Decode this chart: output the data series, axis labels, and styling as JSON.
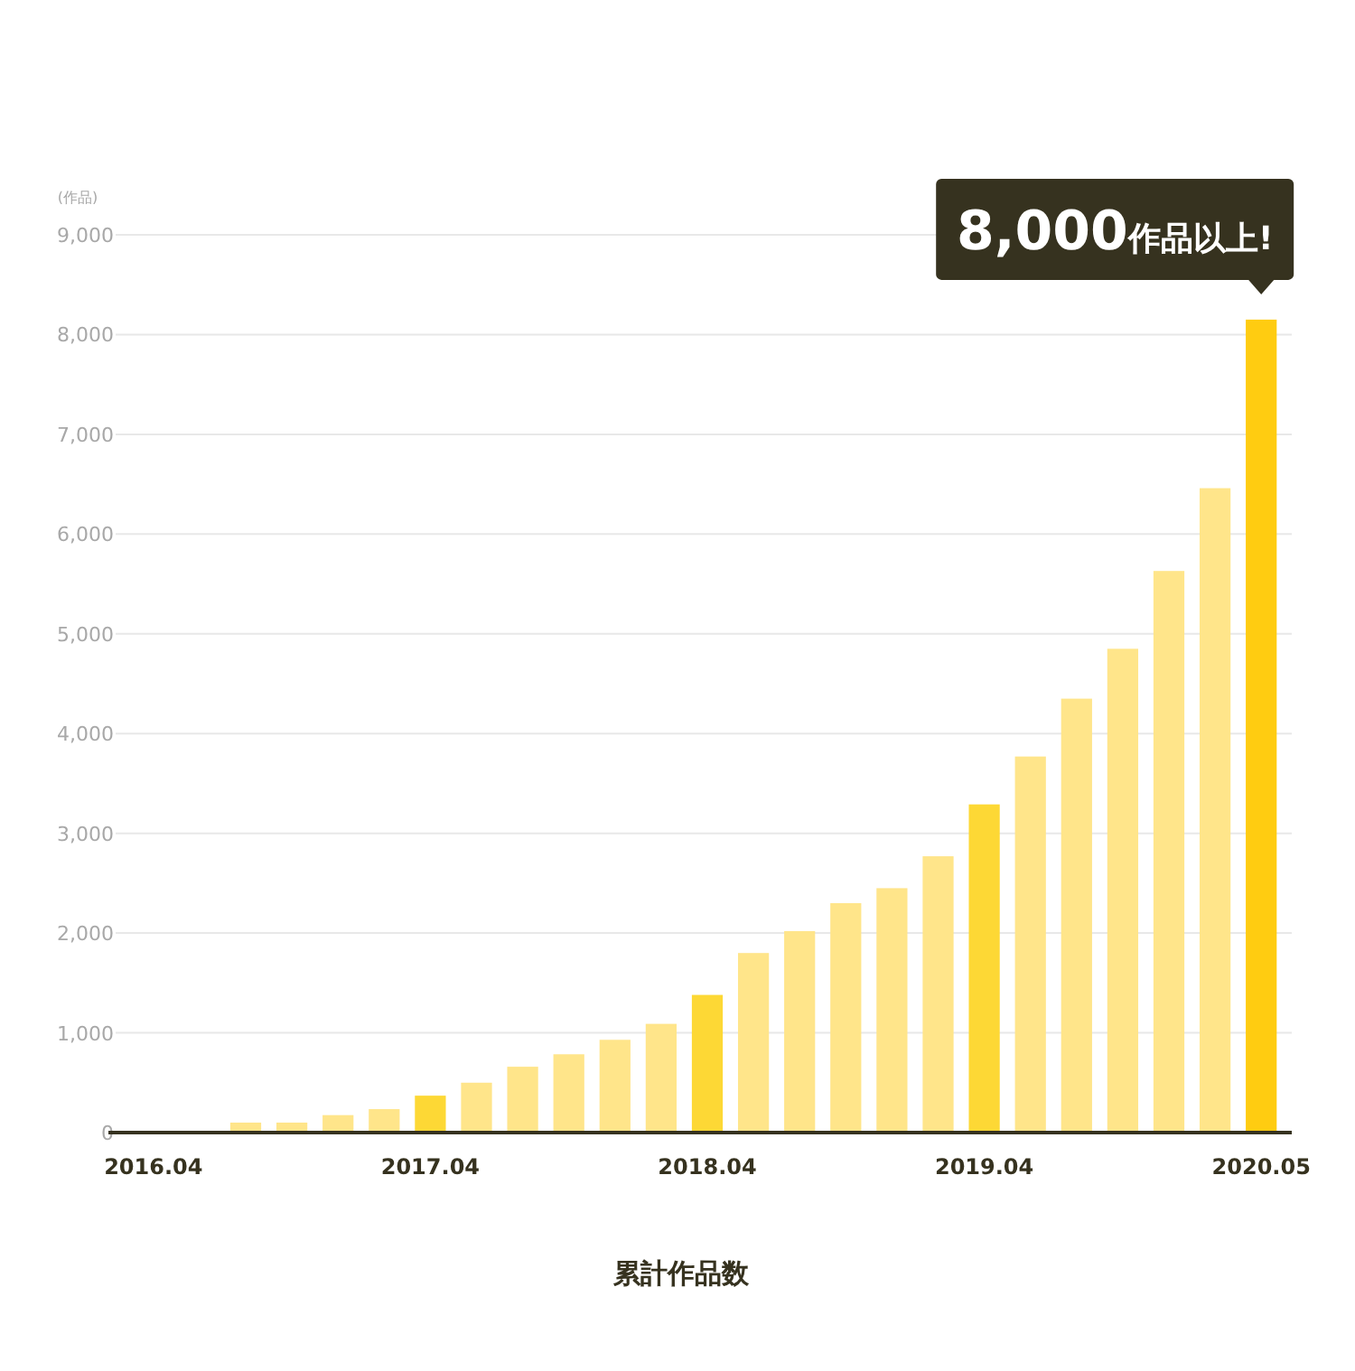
{
  "chart_data": {
    "type": "bar",
    "xlabel": "累計作品数",
    "ylabel": "(作品)",
    "categories": [
      "2016.04",
      null,
      null,
      null,
      null,
      null,
      "2017.04",
      null,
      null,
      null,
      null,
      null,
      "2018.04",
      null,
      null,
      null,
      null,
      null,
      "2019.04",
      null,
      null,
      null,
      null,
      null,
      "2020.05"
    ],
    "values": [
      0,
      0,
      100,
      100,
      175,
      235,
      370,
      500,
      660,
      785,
      930,
      1090,
      1380,
      1800,
      2020,
      2300,
      2450,
      2770,
      3290,
      3770,
      4350,
      4850,
      5630,
      6460,
      8150
    ],
    "colors": [
      "#ffe58a",
      "#ffe58a",
      "#ffe58a",
      "#ffe58a",
      "#ffe58a",
      "#ffe58a",
      "#fdd835",
      "#ffe58a",
      "#ffe58a",
      "#ffe58a",
      "#ffe58a",
      "#ffe58a",
      "#fdd835",
      "#ffe58a",
      "#ffe58a",
      "#ffe58a",
      "#ffe58a",
      "#ffe58a",
      "#fdd835",
      "#ffe58a",
      "#ffe58a",
      "#ffe58a",
      "#ffe58a",
      "#ffe58a",
      "#ffcc11"
    ],
    "ylim": [
      0,
      9000
    ],
    "yticks": [
      0,
      {
        "value": 1000,
        "label": "1,000"
      },
      {
        "value": 2000,
        "label": "2,000"
      },
      {
        "value": 3000,
        "label": "3,000"
      },
      {
        "value": 4000,
        "label": "4,000"
      },
      {
        "value": 5000,
        "label": "5,000"
      },
      {
        "value": 6000,
        "label": "6,000"
      },
      {
        "value": 7000,
        "label": "7,000"
      },
      {
        "value": 8000,
        "label": "8,000"
      },
      {
        "value": 9000,
        "label": "9,000"
      }
    ],
    "grid": "y",
    "annotations": [
      {
        "text": "8,000作品以上!",
        "x": "2020.05",
        "y": 8150
      }
    ]
  }
}
